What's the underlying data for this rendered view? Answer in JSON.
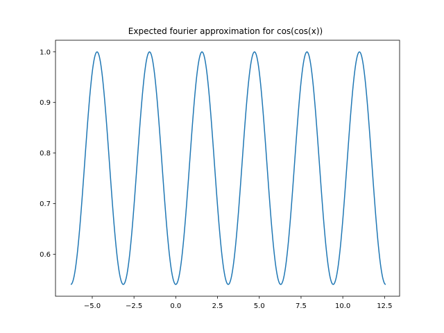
{
  "chart_data": {
    "type": "line",
    "title": "Expected fourier approximation for cos(cos(x))",
    "xlabel": "",
    "ylabel": "",
    "xlim": [
      -7.2,
      13.4
    ],
    "ylim": [
      0.517,
      1.023
    ],
    "grid": false,
    "x_ticks": [
      -5.0,
      -2.5,
      0.0,
      2.5,
      5.0,
      7.5,
      10.0,
      12.5
    ],
    "x_tick_labels": [
      "−5.0",
      "−2.5",
      "0.0",
      "2.5",
      "5.0",
      "7.5",
      "10.0",
      "12.5"
    ],
    "y_ticks": [
      0.6,
      0.7,
      0.8,
      0.9,
      1.0
    ],
    "y_tick_labels": [
      "0.6",
      "0.7",
      "0.8",
      "0.9",
      "1.0"
    ],
    "series": [
      {
        "function": "cos(cos(x))",
        "x_range": [
          -6.2832,
          12.5664
        ],
        "samples": 600,
        "color": "#1f77b4"
      }
    ]
  }
}
